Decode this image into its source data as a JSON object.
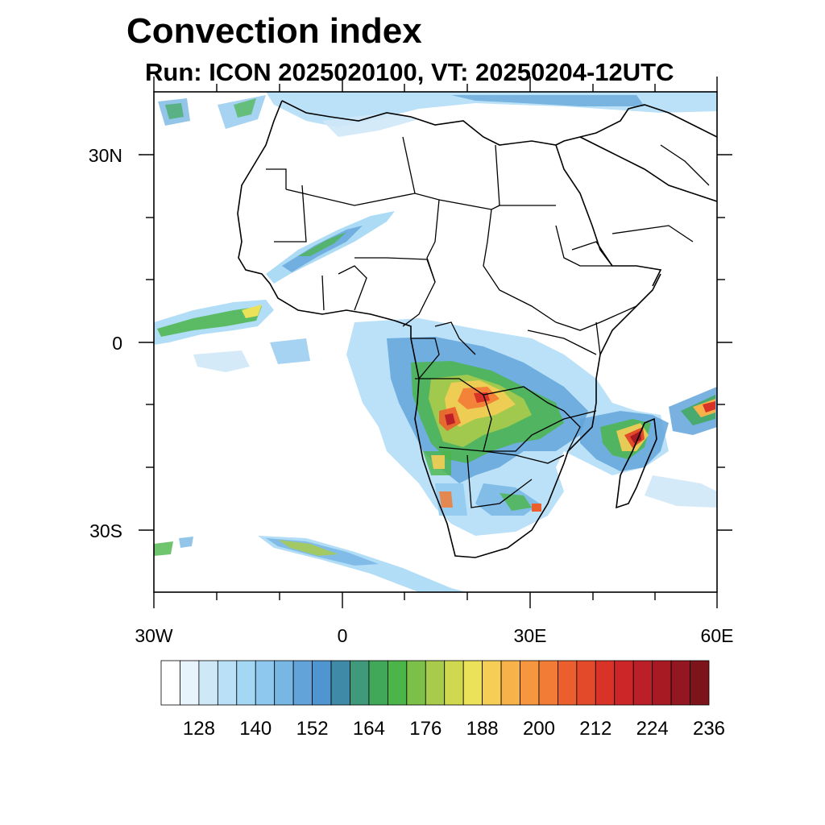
{
  "title": "Convection index",
  "subtitle": "Run: ICON 2025020100,  VT: 20250204-12UTC",
  "map": {
    "lat_labels": [
      "30N",
      "0",
      "30S"
    ],
    "lon_labels": [
      "30W",
      "0",
      "30E",
      "60E"
    ]
  },
  "colorbar": {
    "colors": [
      "#ffffff",
      "#e8f4fb",
      "#cfe8f7",
      "#b9e0f6",
      "#a3d7f4",
      "#8ec8ee",
      "#78b6e4",
      "#62a4da",
      "#4f95cf",
      "#3f8aa6",
      "#3e9a7a",
      "#41a85a",
      "#4bb54a",
      "#7cc04a",
      "#a8cb4c",
      "#cfd84e",
      "#ece25a",
      "#f6cd55",
      "#f7b24a",
      "#f6973f",
      "#f27b35",
      "#eb5f2e",
      "#e34a2a",
      "#d93328",
      "#cd2628",
      "#bb1f27",
      "#a71a24",
      "#931720",
      "#7e141b"
    ],
    "tick_labels": [
      "128",
      "140",
      "152",
      "164",
      "176",
      "188",
      "200",
      "212",
      "224",
      "236"
    ]
  }
}
